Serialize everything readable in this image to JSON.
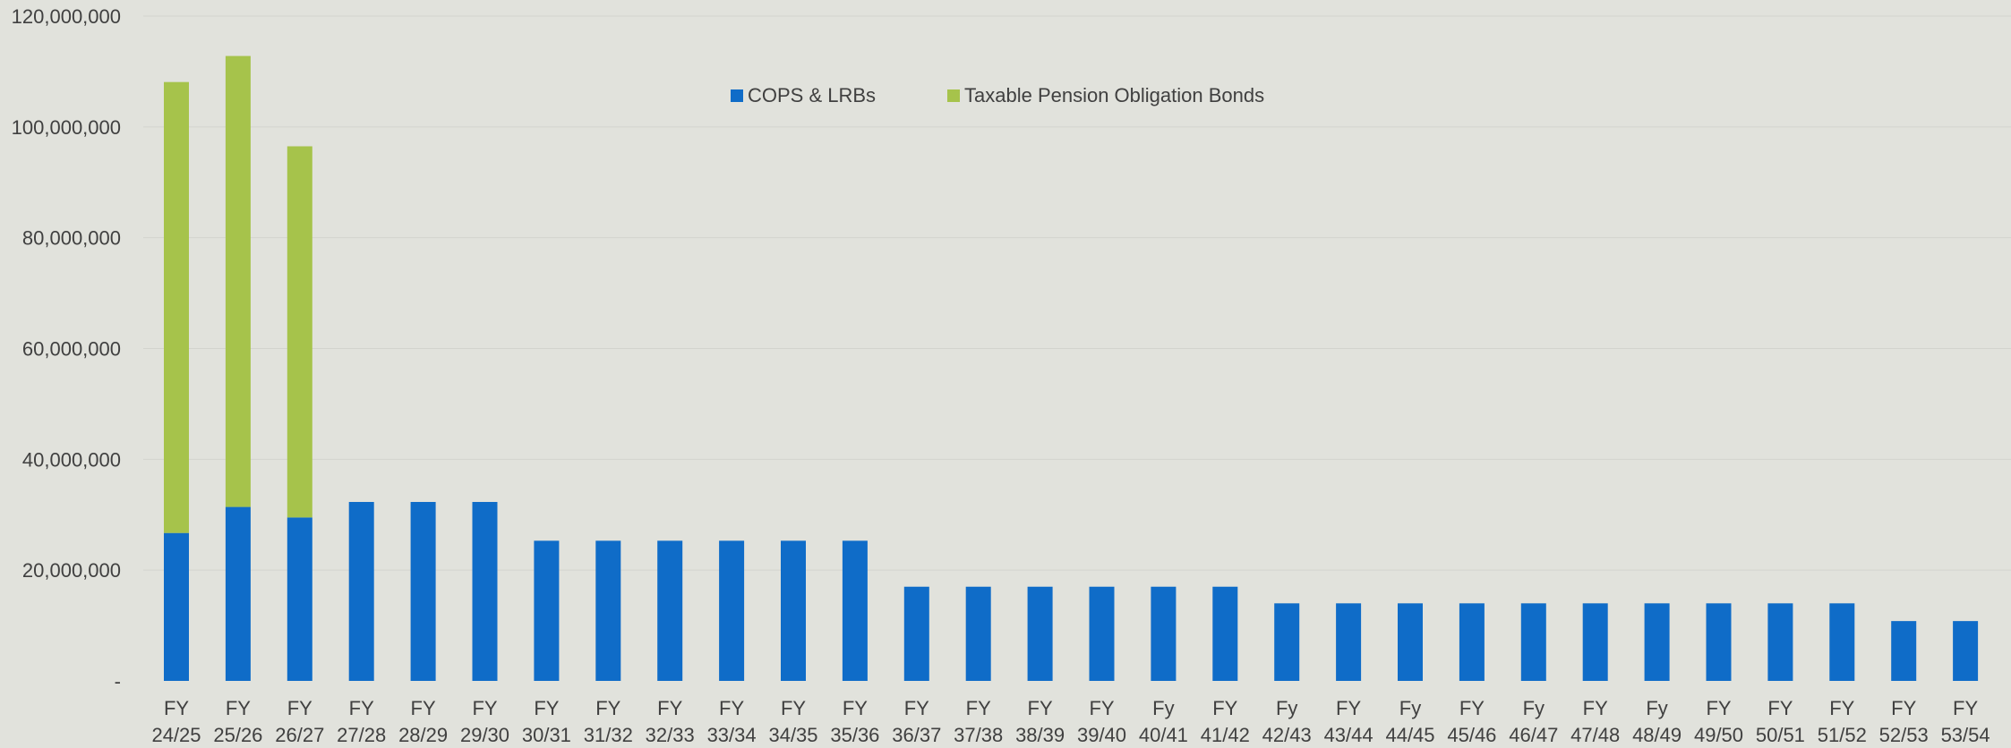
{
  "chart_data": {
    "type": "bar",
    "stacked": true,
    "title": "",
    "xlabel": "",
    "ylabel": "",
    "ylim": [
      0,
      120000000
    ],
    "yticks": [
      0,
      20000000,
      40000000,
      60000000,
      80000000,
      100000000,
      120000000
    ],
    "ytick_labels": [
      "-",
      "20,000,000",
      "40,000,000",
      "60,000,000",
      "80,000,000",
      "100,000,000",
      "120,000,000"
    ],
    "grid": true,
    "legend_position": "top-center",
    "categories": [
      [
        "FY",
        "24/25"
      ],
      [
        "FY",
        "25/26"
      ],
      [
        "FY",
        "26/27"
      ],
      [
        "FY",
        "27/28"
      ],
      [
        "FY",
        "28/29"
      ],
      [
        "FY",
        "29/30"
      ],
      [
        "FY",
        "30/31"
      ],
      [
        "FY",
        "31/32"
      ],
      [
        "FY",
        "32/33"
      ],
      [
        "FY",
        "33/34"
      ],
      [
        "FY",
        "34/35"
      ],
      [
        "FY",
        "35/36"
      ],
      [
        "FY",
        "36/37"
      ],
      [
        "FY",
        "37/38"
      ],
      [
        "FY",
        "38/39"
      ],
      [
        "FY",
        "39/40"
      ],
      [
        "Fy",
        "40/41"
      ],
      [
        "FY",
        "41/42"
      ],
      [
        "Fy",
        "42/43"
      ],
      [
        "FY",
        "43/44"
      ],
      [
        "Fy",
        "44/45"
      ],
      [
        "FY",
        "45/46"
      ],
      [
        "Fy",
        "46/47"
      ],
      [
        "FY",
        "47/48"
      ],
      [
        "Fy",
        "48/49"
      ],
      [
        "FY",
        "49/50"
      ],
      [
        "FY",
        "50/51"
      ],
      [
        "FY",
        "51/52"
      ],
      [
        "FY",
        "52/53"
      ],
      [
        "FY",
        "53/54"
      ]
    ],
    "series": [
      {
        "name": "COPS & LRBs",
        "color": "#0f6cc8",
        "values": [
          26700000,
          31400000,
          29500000,
          32300000,
          32300000,
          32300000,
          25300000,
          25300000,
          25300000,
          25300000,
          25300000,
          25300000,
          17000000,
          17000000,
          17000000,
          17000000,
          17000000,
          17000000,
          14000000,
          14000000,
          14000000,
          14000000,
          14000000,
          14000000,
          14000000,
          14000000,
          14000000,
          14000000,
          10800000,
          10800000
        ]
      },
      {
        "name": "Taxable Pension Obligation Bonds",
        "color": "#a6c34b",
        "values": [
          81400000,
          81400000,
          67000000,
          0,
          0,
          0,
          0,
          0,
          0,
          0,
          0,
          0,
          0,
          0,
          0,
          0,
          0,
          0,
          0,
          0,
          0,
          0,
          0,
          0,
          0,
          0,
          0,
          0,
          0,
          0
        ]
      }
    ]
  }
}
